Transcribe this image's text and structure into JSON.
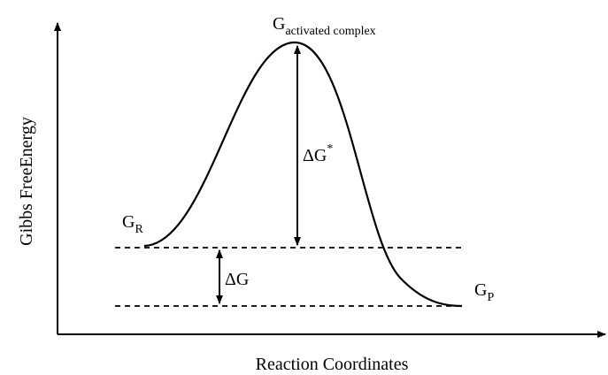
{
  "axes": {
    "y_label": "Gibbs FreeEnergy",
    "x_label": "Reaction Coordinates"
  },
  "labels": {
    "reactant": {
      "main": "G",
      "sub": "R"
    },
    "activated_complex": {
      "main": "G",
      "sub": "activated complex"
    },
    "activation_energy": {
      "main": "ΔG",
      "sup": "*"
    },
    "free_energy_change": {
      "main": "ΔG"
    },
    "product": {
      "main": "G",
      "sub": "P"
    }
  }
}
